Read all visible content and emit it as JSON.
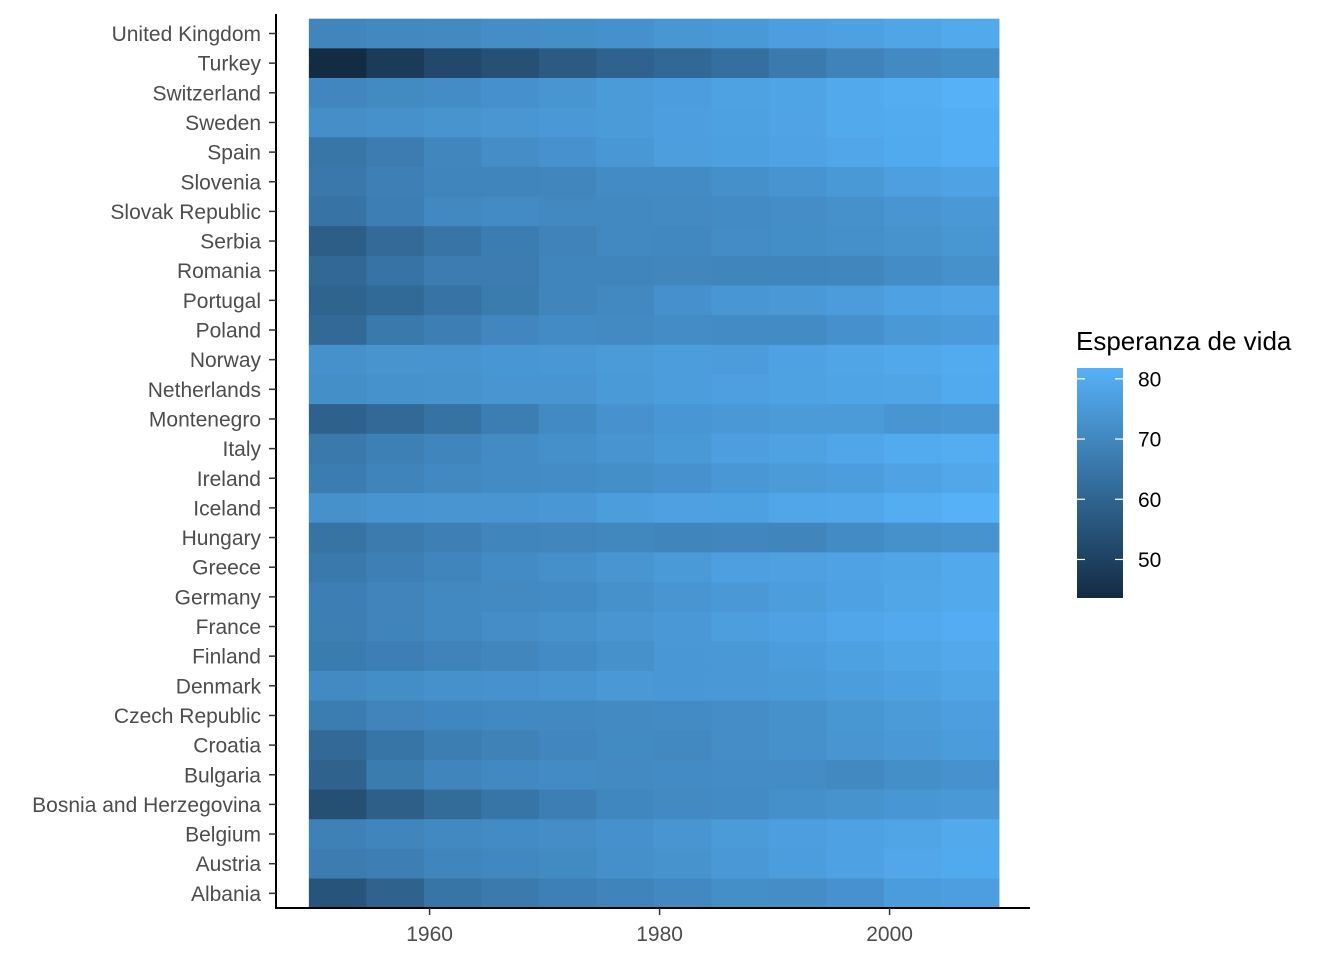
{
  "chart_data": {
    "type": "heatmap",
    "title": "",
    "xlabel": "",
    "ylabel": "",
    "x": [
      1952,
      1957,
      1962,
      1967,
      1972,
      1977,
      1982,
      1987,
      1992,
      1997,
      2002,
      2007
    ],
    "x_ticks": [
      1960,
      1980,
      2000
    ],
    "countries": [
      "United Kingdom",
      "Turkey",
      "Switzerland",
      "Sweden",
      "Spain",
      "Slovenia",
      "Slovak Republic",
      "Serbia",
      "Romania",
      "Portugal",
      "Poland",
      "Norway",
      "Netherlands",
      "Montenegro",
      "Italy",
      "Ireland",
      "Iceland",
      "Hungary",
      "Greece",
      "Germany",
      "France",
      "Finland",
      "Denmark",
      "Czech Republic",
      "Croatia",
      "Bulgaria",
      "Bosnia and Herzegovina",
      "Belgium",
      "Austria",
      "Albania"
    ],
    "values": [
      [
        69.2,
        70.4,
        70.8,
        71.4,
        72.0,
        72.8,
        74.0,
        75.0,
        76.4,
        77.2,
        78.5,
        79.4
      ],
      [
        43.6,
        48.1,
        52.1,
        54.3,
        57.0,
        59.5,
        61.0,
        63.1,
        66.1,
        68.8,
        70.8,
        71.8
      ],
      [
        69.6,
        70.6,
        71.3,
        72.8,
        73.8,
        75.4,
        76.2,
        77.4,
        78.0,
        79.4,
        80.6,
        81.7
      ],
      [
        71.9,
        72.5,
        73.4,
        74.2,
        74.7,
        75.4,
        76.4,
        77.2,
        78.2,
        79.4,
        80.0,
        80.9
      ],
      [
        64.9,
        66.7,
        69.7,
        71.4,
        73.1,
        74.4,
        76.3,
        76.9,
        77.6,
        78.8,
        79.8,
        80.9
      ],
      [
        65.6,
        67.9,
        69.2,
        69.2,
        69.8,
        70.9,
        71.1,
        72.3,
        73.6,
        75.1,
        76.7,
        77.9
      ],
      [
        64.4,
        67.5,
        70.3,
        71.0,
        70.3,
        70.5,
        70.8,
        71.1,
        71.4,
        72.7,
        73.8,
        74.7
      ],
      [
        58.0,
        61.7,
        64.5,
        66.9,
        68.7,
        70.3,
        70.2,
        71.2,
        71.7,
        72.2,
        73.2,
        74.0
      ],
      [
        61.1,
        64.1,
        66.8,
        66.8,
        69.2,
        69.5,
        69.7,
        69.5,
        69.4,
        69.7,
        71.3,
        72.5
      ],
      [
        59.8,
        61.5,
        64.4,
        66.6,
        69.3,
        70.4,
        72.8,
        74.1,
        74.9,
        75.9,
        77.3,
        78.1
      ],
      [
        61.3,
        65.8,
        67.6,
        69.6,
        70.9,
        70.7,
        71.3,
        71.0,
        71.0,
        72.8,
        74.7,
        75.6
      ],
      [
        72.7,
        73.4,
        73.5,
        74.1,
        74.3,
        75.4,
        76.0,
        75.9,
        77.3,
        78.3,
        79.1,
        80.2
      ],
      [
        72.1,
        72.9,
        73.2,
        73.8,
        73.8,
        75.2,
        76.1,
        76.8,
        77.4,
        78.0,
        78.5,
        79.8
      ],
      [
        59.2,
        61.4,
        63.7,
        67.2,
        70.6,
        73.1,
        74.1,
        74.9,
        75.4,
        75.4,
        73.9,
        74.5
      ],
      [
        65.9,
        67.8,
        69.2,
        71.1,
        72.2,
        73.5,
        75.0,
        76.4,
        77.4,
        78.8,
        80.2,
        80.5
      ],
      [
        66.9,
        68.9,
        70.3,
        71.1,
        71.3,
        72.0,
        73.1,
        74.4,
        75.5,
        76.1,
        77.8,
        78.9
      ],
      [
        72.5,
        73.5,
        73.7,
        73.7,
        74.5,
        76.1,
        76.99,
        77.2,
        78.8,
        79.0,
        80.5,
        81.8
      ],
      [
        64.0,
        66.4,
        67.96,
        69.5,
        69.8,
        70.0,
        69.4,
        69.6,
        69.2,
        71.0,
        72.6,
        73.3
      ],
      [
        65.9,
        67.9,
        69.5,
        71.0,
        72.3,
        73.7,
        75.2,
        76.7,
        77.0,
        77.9,
        78.3,
        79.5
      ],
      [
        67.5,
        69.1,
        70.3,
        70.8,
        71.0,
        72.5,
        73.8,
        74.8,
        76.1,
        77.3,
        78.7,
        79.4
      ],
      [
        67.4,
        68.9,
        70.5,
        71.6,
        72.4,
        73.8,
        74.9,
        76.3,
        77.5,
        78.6,
        79.6,
        80.7
      ],
      [
        66.6,
        67.5,
        68.8,
        69.8,
        70.9,
        72.5,
        74.6,
        74.8,
        75.7,
        77.1,
        78.4,
        79.3
      ],
      [
        70.8,
        71.8,
        72.4,
        73.0,
        73.5,
        74.7,
        74.6,
        74.8,
        75.3,
        76.1,
        77.2,
        78.3
      ],
      [
        66.9,
        69.0,
        69.9,
        70.4,
        70.3,
        70.7,
        71.0,
        71.6,
        72.4,
        74.0,
        75.5,
        76.5
      ],
      [
        61.2,
        64.8,
        67.1,
        68.5,
        69.6,
        70.6,
        70.5,
        71.5,
        72.5,
        73.7,
        74.9,
        75.7
      ],
      [
        59.6,
        66.6,
        69.5,
        70.4,
        70.9,
        70.8,
        71.1,
        71.3,
        71.2,
        70.3,
        72.1,
        73.0
      ],
      [
        53.8,
        58.5,
        61.9,
        64.8,
        67.5,
        69.9,
        70.7,
        71.1,
        72.2,
        73.2,
        74.1,
        74.9
      ],
      [
        68.0,
        69.2,
        70.3,
        70.9,
        71.4,
        72.8,
        73.9,
        75.4,
        76.5,
        77.5,
        78.3,
        79.4
      ],
      [
        66.8,
        67.5,
        69.5,
        70.1,
        70.6,
        72.2,
        73.2,
        74.9,
        76.0,
        77.5,
        79.0,
        79.8
      ],
      [
        55.2,
        59.3,
        64.8,
        66.2,
        67.7,
        68.9,
        70.4,
        72.0,
        71.6,
        73.0,
        75.7,
        76.4
      ]
    ],
    "legend": {
      "title": "Esperanza de vida",
      "ticks": [
        50,
        60,
        70,
        80
      ],
      "range": [
        43.6,
        81.8
      ],
      "low_color": "#132B43",
      "high_color": "#56B1F7",
      "placement": "right"
    }
  }
}
